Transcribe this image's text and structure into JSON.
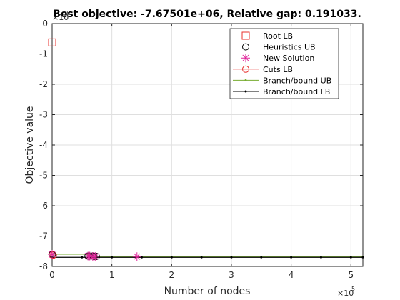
{
  "chart_data": {
    "type": "line",
    "title": "Best objective: -7.67501e+06, Relative gap: 0.191033.",
    "xlabel": "Number of nodes",
    "ylabel": "Objective value",
    "x_exponent_label": "×10",
    "x_exponent_power": "5",
    "y_exponent_label": "×10",
    "y_exponent_power": "6",
    "xlim": [
      0,
      5.2
    ],
    "ylim": [
      -8,
      0
    ],
    "x_ticks": [
      0,
      1,
      2,
      3,
      4,
      5
    ],
    "y_ticks": [
      0,
      -1,
      -2,
      -3,
      -4,
      -5,
      -6,
      -7,
      -8
    ],
    "grid": true,
    "legend_position": "top-right",
    "series": [
      {
        "name": "Root LB",
        "color": "#e8312e",
        "marker": "square",
        "line": false,
        "points": [
          [
            0,
            -0.62
          ]
        ]
      },
      {
        "name": "Heuristics UB",
        "color": "#000000",
        "marker": "circle",
        "line": false,
        "points": [
          [
            0,
            -7.6
          ],
          [
            0.6,
            -7.66
          ],
          [
            0.62,
            -7.66
          ],
          [
            0.68,
            -7.66
          ],
          [
            0.7,
            -7.67
          ],
          [
            0.74,
            -7.67
          ]
        ]
      },
      {
        "name": "New Solution",
        "color": "#e0249a",
        "marker": "asterisk",
        "line": false,
        "points": [
          [
            0,
            -7.6
          ],
          [
            0.6,
            -7.66
          ],
          [
            0.63,
            -7.66
          ],
          [
            0.68,
            -7.67
          ],
          [
            0.72,
            -7.67
          ],
          [
            1.42,
            -7.675
          ]
        ]
      },
      {
        "name": "Cuts LB",
        "color": "#e8312e",
        "marker": "circle",
        "line": true,
        "points": [
          [
            0,
            -7.62
          ],
          [
            0.02,
            -7.63
          ]
        ]
      },
      {
        "name": "Branch/bound UB",
        "color": "#77ac30",
        "marker": "dot",
        "line": true,
        "points": [
          [
            0,
            -7.6
          ],
          [
            0.6,
            -7.6
          ],
          [
            0.62,
            -7.66
          ],
          [
            0.72,
            -7.67
          ],
          [
            1.42,
            -7.675
          ],
          [
            5.2,
            -7.675
          ]
        ]
      },
      {
        "name": "Branch/bound LB",
        "color": "#000000",
        "marker": "dot",
        "line": true,
        "points": [
          [
            0,
            -7.7
          ],
          [
            0.5,
            -7.7
          ],
          [
            1,
            -7.7
          ],
          [
            1.5,
            -7.7
          ],
          [
            2,
            -7.7
          ],
          [
            2.5,
            -7.7
          ],
          [
            3,
            -7.7
          ],
          [
            3.5,
            -7.7
          ],
          [
            4,
            -7.7
          ],
          [
            4.5,
            -7.7
          ],
          [
            5,
            -7.7
          ],
          [
            5.2,
            -7.7
          ]
        ]
      }
    ]
  }
}
